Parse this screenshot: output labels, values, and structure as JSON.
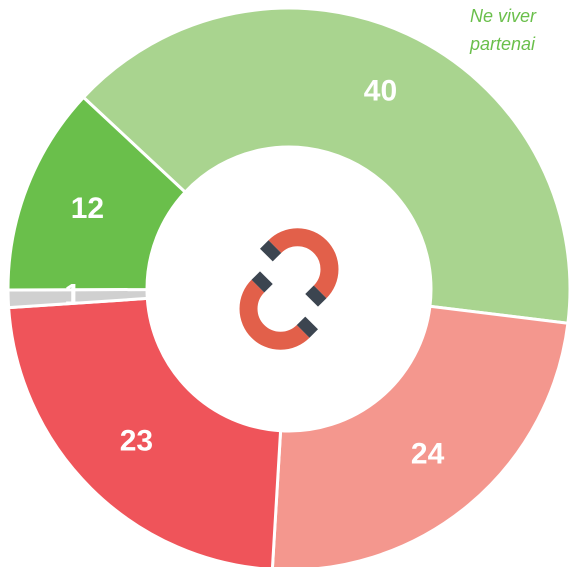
{
  "chart_data": {
    "type": "donut",
    "annotations": [
      "Ne viver",
      "partenai"
    ],
    "categories": [
      null,
      null,
      null,
      null,
      null
    ],
    "values": [
      40,
      24,
      23,
      1,
      12
    ],
    "colors": [
      "#a9d48f",
      "#f4978e",
      "#ef545a",
      "#d0d0d0",
      "#6abf4b"
    ]
  }
}
